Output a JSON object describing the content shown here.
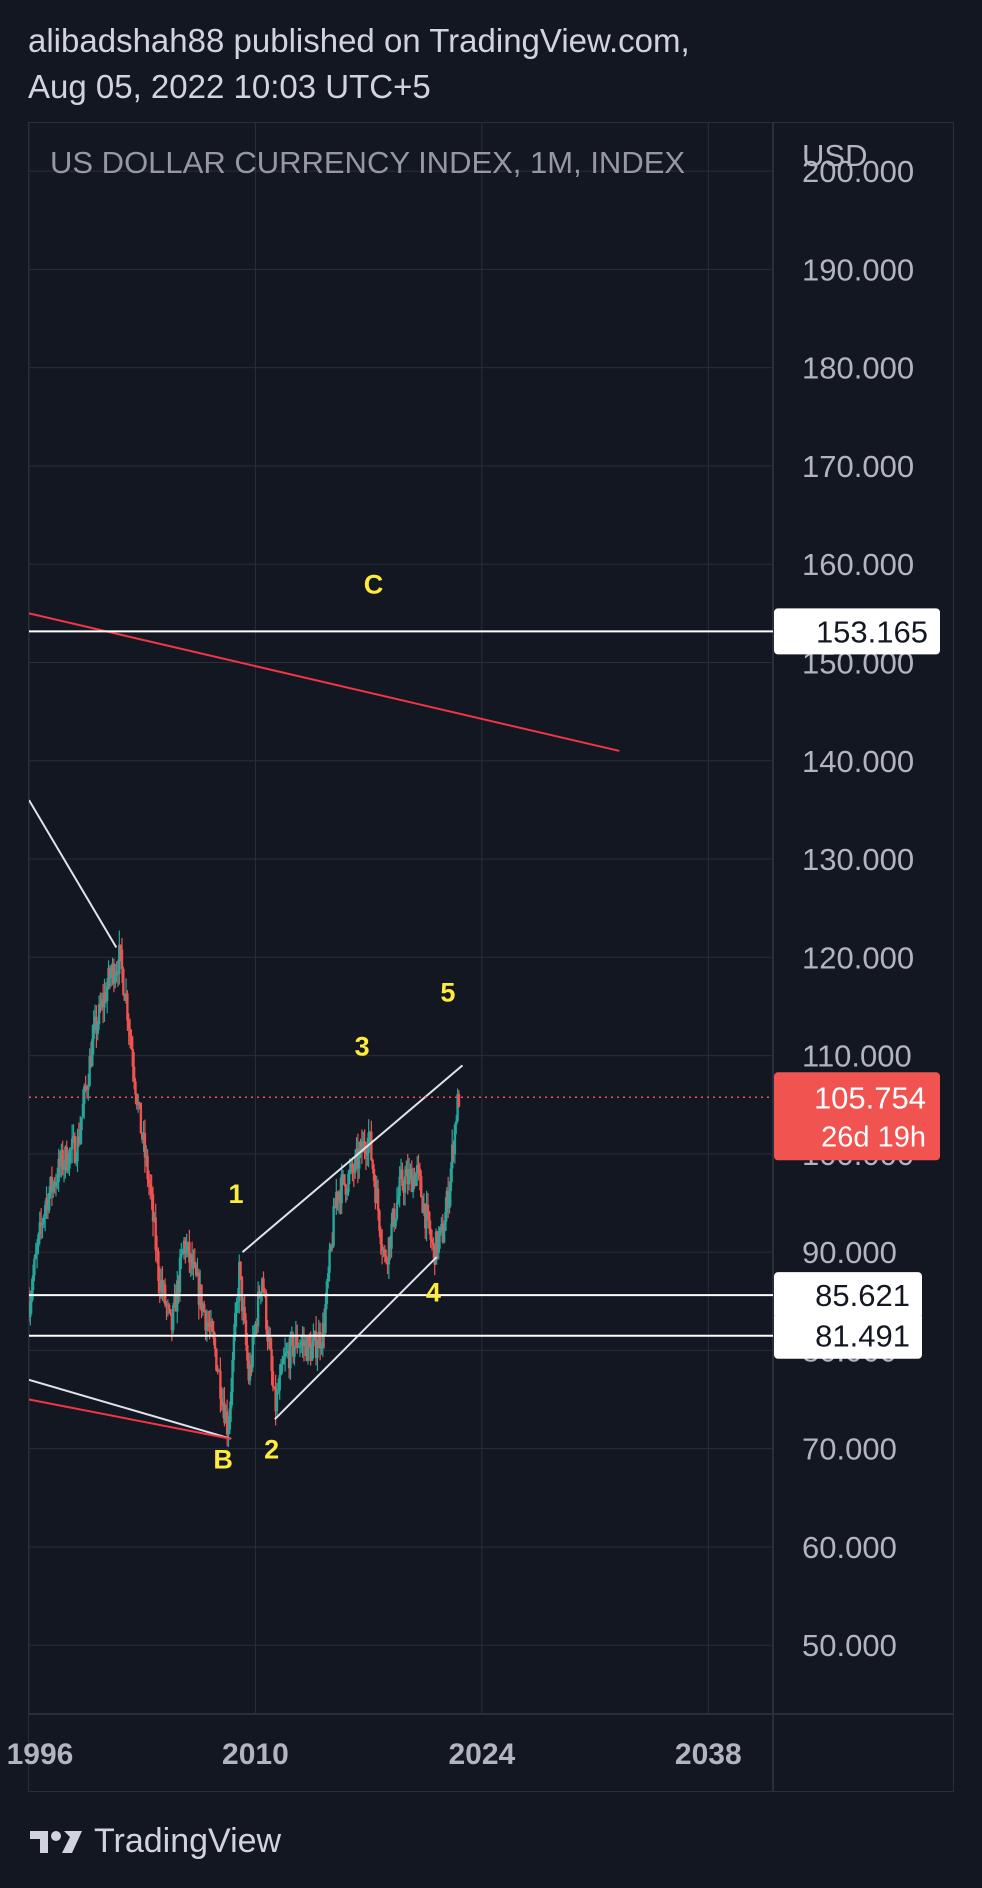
{
  "header": {
    "line1": "alibadshah88 published on TradingView.com,",
    "line2": "Aug 05, 2022 10:03 UTC+5"
  },
  "chart": {
    "title": "US DOLLAR CURRENCY INDEX, 1M, INDEX",
    "currency": "USD"
  },
  "footer": {
    "brand": "TradingView"
  },
  "colors": {
    "background": "#131722",
    "grid": "#2a2e39",
    "up": "#26a69a",
    "down": "#ef5350",
    "wave_label": "#ffeb3b",
    "trendline_white": "#e0e3eb",
    "trendline_red": "#f23645",
    "current_price": "#f05350"
  },
  "chart_data": {
    "type": "candlestick",
    "title": "US DOLLAR CURRENCY INDEX, 1M, INDEX",
    "y_axis_unit": "USD",
    "ylim": [
      43,
      205
    ],
    "xlim": [
      1996.0,
      2042.0
    ],
    "y_ticks": [
      "200.000",
      "190.000",
      "180.000",
      "170.000",
      "160.000",
      "150.000",
      "140.000",
      "130.000",
      "120.000",
      "110.000",
      "100.000",
      "90.000",
      "80.000",
      "70.000",
      "60.000",
      "50.000"
    ],
    "x_ticks": [
      "1996",
      "2010",
      "2024",
      "2038"
    ],
    "grid": true,
    "price_path": [
      [
        1996.0,
        85
      ],
      [
        1997.0,
        95
      ],
      [
        1998.0,
        99
      ],
      [
        1999.0,
        101
      ],
      [
        2000.0,
        112
      ],
      [
        2001.0,
        118
      ],
      [
        2001.6,
        120
      ],
      [
        2002.0,
        116
      ],
      [
        2002.8,
        104
      ],
      [
        2003.5,
        96
      ],
      [
        2004.0,
        88
      ],
      [
        2004.8,
        82
      ],
      [
        2005.6,
        91
      ],
      [
        2006.5,
        86
      ],
      [
        2007.5,
        80
      ],
      [
        2008.3,
        72
      ],
      [
        2009.0,
        88
      ],
      [
        2009.6,
        77
      ],
      [
        2010.4,
        88
      ],
      [
        2011.2,
        74
      ],
      [
        2011.8,
        79
      ],
      [
        2012.6,
        81
      ],
      [
        2013.5,
        80
      ],
      [
        2014.2,
        82
      ],
      [
        2015.0,
        96
      ],
      [
        2016.0,
        98
      ],
      [
        2017.0,
        102
      ],
      [
        2018.0,
        89
      ],
      [
        2019.0,
        97
      ],
      [
        2020.0,
        98
      ],
      [
        2021.0,
        90
      ],
      [
        2021.6,
        92
      ],
      [
        2022.0,
        97
      ],
      [
        2022.4,
        104
      ],
      [
        2022.6,
        106
      ]
    ],
    "current_price": "105.754",
    "countdown": "26d 19h",
    "horizontal_levels": [
      {
        "price": 153.165,
        "label": "153.165"
      },
      {
        "price": 85.621,
        "label": "85.621"
      },
      {
        "price": 81.491,
        "label": "81.491"
      }
    ],
    "trendlines": [
      {
        "color": "white",
        "points": [
          [
            1996.0,
            136
          ],
          [
            2001.4,
            121
          ]
        ]
      },
      {
        "color": "white",
        "points": [
          [
            1996.0,
            77
          ],
          [
            2008.5,
            71
          ]
        ]
      },
      {
        "color": "red",
        "points": [
          [
            1996.0,
            75
          ],
          [
            2008.5,
            71
          ]
        ]
      },
      {
        "color": "red",
        "points": [
          [
            1996.0,
            155
          ],
          [
            2032.5,
            141
          ]
        ]
      },
      {
        "color": "white",
        "points": [
          [
            2009.2,
            90
          ],
          [
            2022.8,
            109
          ]
        ]
      },
      {
        "color": "white",
        "points": [
          [
            2011.2,
            73
          ],
          [
            2021.2,
            89.5
          ]
        ]
      }
    ],
    "wave_labels": [
      {
        "text": "C",
        "x": 2017.3,
        "y": 157
      },
      {
        "text": "1",
        "x": 2008.8,
        "y": 95
      },
      {
        "text": "2",
        "x": 2011.0,
        "y": 69
      },
      {
        "text": "3",
        "x": 2016.6,
        "y": 110
      },
      {
        "text": "4",
        "x": 2021.0,
        "y": 85
      },
      {
        "text": "5",
        "x": 2021.9,
        "y": 115.5
      },
      {
        "text": "B",
        "x": 2008.0,
        "y": 68
      }
    ]
  }
}
